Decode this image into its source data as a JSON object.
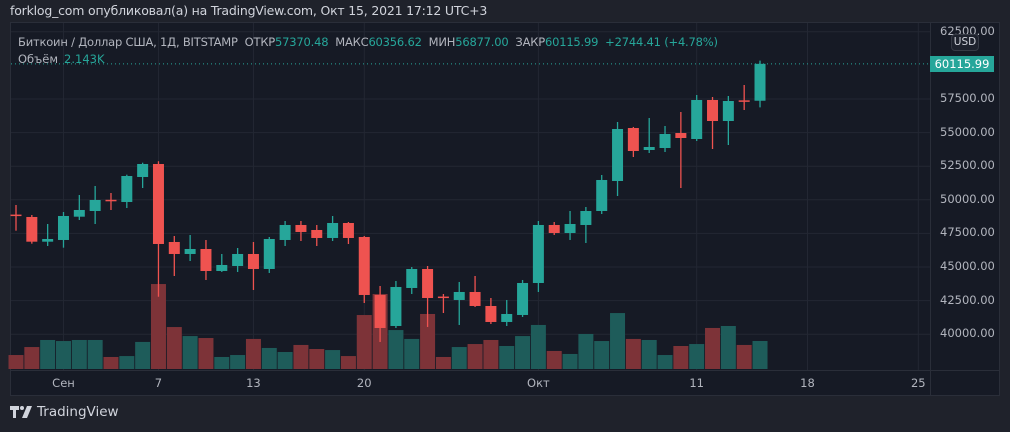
{
  "header": {
    "title": "forklog_com опубликовал(а) на TradingView.com, Окт 15, 2021 17:12 UTC+3"
  },
  "legend": {
    "symbol": "Биткоин / Доллар США, 1Д, BITSTAMP",
    "open_label": "ОТКР",
    "open": "57370.48",
    "high_label": "МАКС",
    "high": "60356.62",
    "low_label": "МИН",
    "low": "56877.00",
    "close_label": "ЗАКР",
    "close": "60115.99",
    "change": "+2744.41 (+4.78%)",
    "volume_label": "Объём",
    "volume": "2.143K"
  },
  "price_axis": {
    "currency": "USD",
    "last_price": "60115.99",
    "labels": [
      "62500.00",
      "57500.00",
      "55000.00",
      "52500.00",
      "50000.00",
      "47500.00",
      "45000.00",
      "42500.00",
      "40000.00"
    ]
  },
  "time_axis": {
    "labels": [
      {
        "text": "Сен",
        "date": "2021-09-01"
      },
      {
        "text": "7",
        "date": "2021-09-07"
      },
      {
        "text": "13",
        "date": "2021-09-13"
      },
      {
        "text": "20",
        "date": "2021-09-20"
      },
      {
        "text": "Окт",
        "date": "2021-10-01"
      },
      {
        "text": "11",
        "date": "2021-10-11"
      },
      {
        "text": "18",
        "date": "2021-10-18"
      },
      {
        "text": "25",
        "date": "2021-10-25"
      }
    ]
  },
  "footer": {
    "brand": "TradingView"
  },
  "colors": {
    "up": "#26a69a",
    "down": "#ef5350",
    "up_volume": "#1e5c5a",
    "down_volume": "#7d3338",
    "background": "#161a25"
  },
  "chart_data": {
    "type": "candlestick",
    "start_date": "2021-08-29",
    "columns": [
      "open",
      "high",
      "low",
      "close",
      "volume_k"
    ],
    "candles": [
      [
        48900,
        49614,
        47702,
        48817,
        1.07
      ],
      [
        48721,
        48870,
        46734,
        46883,
        1.68
      ],
      [
        46883,
        48200,
        46563,
        47084,
        2.22
      ],
      [
        47010,
        49093,
        46437,
        48795,
        2.14
      ],
      [
        48743,
        50358,
        48498,
        49242,
        2.22
      ],
      [
        49167,
        51027,
        48200,
        49986,
        2.22
      ],
      [
        50000,
        50506,
        49242,
        49900,
        0.92
      ],
      [
        49837,
        51868,
        49390,
        51771,
        0.99
      ],
      [
        51697,
        52761,
        50878,
        52664,
        2.07
      ],
      [
        52664,
        52865,
        42791,
        46712,
        6.5
      ],
      [
        46861,
        47307,
        44331,
        45968,
        3.21
      ],
      [
        45968,
        47382,
        45447,
        46340,
        2.52
      ],
      [
        46340,
        47010,
        44034,
        44703,
        2.37
      ],
      [
        44703,
        45968,
        44629,
        45150,
        0.92
      ],
      [
        45075,
        46414,
        44629,
        45968,
        1.07
      ],
      [
        45968,
        46861,
        43290,
        44852,
        2.3
      ],
      [
        44852,
        47233,
        44555,
        47084,
        1.61
      ],
      [
        47010,
        48423,
        46563,
        48126,
        1.3
      ],
      [
        48126,
        48423,
        46935,
        47605,
        1.84
      ],
      [
        47754,
        48126,
        46563,
        47159,
        1.53
      ],
      [
        47159,
        48795,
        46935,
        48274,
        1.45
      ],
      [
        48274,
        48349,
        46712,
        47159,
        0.99
      ],
      [
        47233,
        47307,
        42322,
        42918,
        4.13
      ],
      [
        42918,
        43588,
        39421,
        40462,
        5.74
      ],
      [
        40611,
        43960,
        40462,
        43513,
        2.98
      ],
      [
        43439,
        45001,
        42992,
        44852,
        2.3
      ],
      [
        44852,
        45075,
        40537,
        42694,
        4.21
      ],
      [
        42800,
        42992,
        41578,
        42694,
        0.92
      ],
      [
        42546,
        43886,
        40686,
        43141,
        1.68
      ],
      [
        43141,
        44331,
        42025,
        42099,
        1.91
      ],
      [
        42099,
        42694,
        40760,
        40909,
        2.22
      ],
      [
        40909,
        42546,
        40611,
        41504,
        1.76
      ],
      [
        41430,
        44034,
        41281,
        43810,
        2.52
      ],
      [
        43810,
        48423,
        43141,
        48126,
        3.37
      ],
      [
        48126,
        48349,
        47382,
        47530,
        1.38
      ],
      [
        47530,
        49167,
        47010,
        48200,
        1.15
      ],
      [
        48126,
        49465,
        46786,
        49167,
        2.68
      ],
      [
        49167,
        51846,
        48944,
        51474,
        2.14
      ],
      [
        51399,
        55789,
        50283,
        55268,
        4.28
      ],
      [
        55342,
        55420,
        53185,
        53631,
        2.3
      ],
      [
        53706,
        56086,
        53482,
        53929,
        2.22
      ],
      [
        53854,
        55491,
        53557,
        54896,
        1.07
      ],
      [
        54970,
        56533,
        50878,
        54598,
        1.76
      ],
      [
        54524,
        57798,
        54375,
        57426,
        1.91
      ],
      [
        57426,
        57649,
        53780,
        55863,
        3.14
      ],
      [
        55863,
        57723,
        54078,
        57351,
        3.29
      ],
      [
        57400,
        58542,
        56682,
        57370.48,
        1.84
      ],
      [
        57370.48,
        60356.62,
        56877,
        60115.99,
        2.143
      ]
    ],
    "ylim": [
      38500,
      62500
    ],
    "grid": true
  }
}
